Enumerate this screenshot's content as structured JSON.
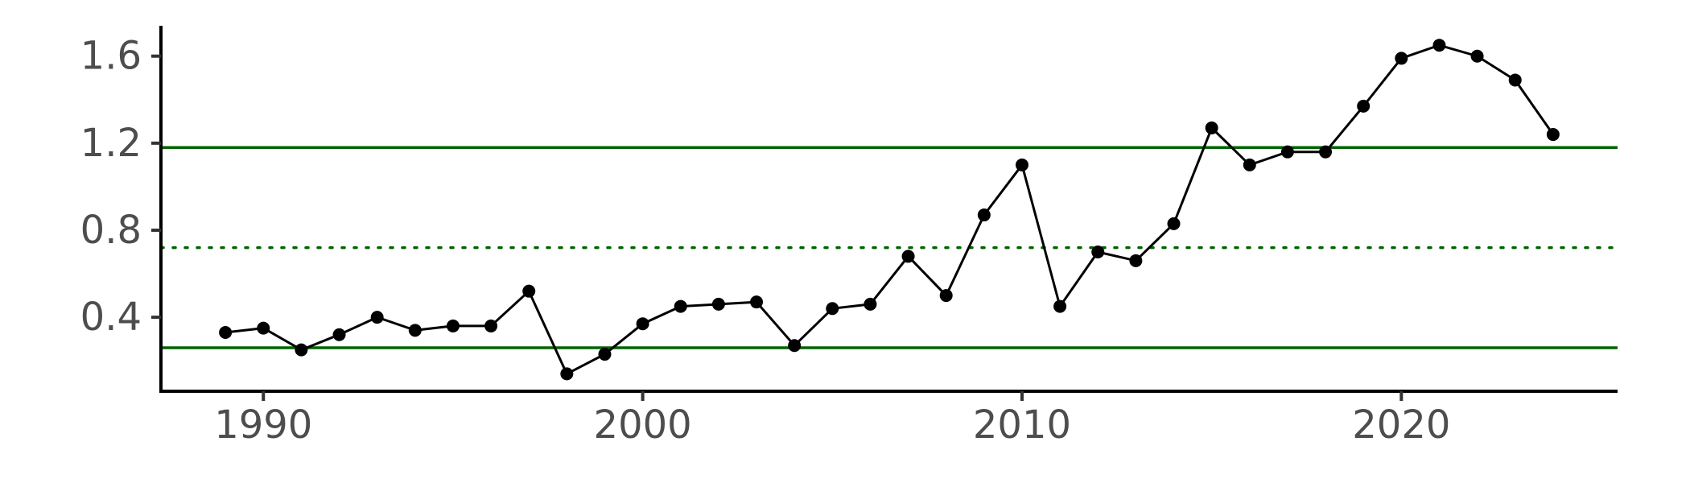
{
  "chart_data": {
    "type": "line",
    "title": "",
    "xlabel": "",
    "ylabel": "",
    "xlim": [
      1987.3,
      2025.7
    ],
    "ylim": [
      0.06,
      1.71
    ],
    "x_ticks": [
      1990,
      2000,
      2010,
      2020
    ],
    "x_tick_labels": [
      "1990",
      "2000",
      "2010",
      "2020"
    ],
    "y_ticks": [
      0.4,
      0.8,
      1.2,
      1.6
    ],
    "y_tick_labels": [
      "0.4",
      "0.8",
      "1.2",
      "1.6"
    ],
    "grid": false,
    "legend": "none",
    "series": [
      {
        "color": "#000000",
        "markers": true,
        "x": [
          1989,
          1990,
          1991,
          1992,
          1993,
          1994,
          1995,
          1996,
          1997,
          1998,
          1999,
          2000,
          2001,
          2002,
          2003,
          2004,
          2005,
          2006,
          2007,
          2008,
          2009,
          2010,
          2011,
          2012,
          2013,
          2014,
          2015,
          2016,
          2017,
          2018,
          2019,
          2020,
          2021,
          2022,
          2023,
          2024
        ],
        "y": [
          0.33,
          0.35,
          0.25,
          0.32,
          0.4,
          0.34,
          0.36,
          0.36,
          0.52,
          0.14,
          0.23,
          0.37,
          0.45,
          0.46,
          0.47,
          0.27,
          0.44,
          0.46,
          0.68,
          0.5,
          0.87,
          1.1,
          0.45,
          0.7,
          0.66,
          0.83,
          1.27,
          1.1,
          1.16,
          1.16,
          1.37,
          1.59,
          1.65,
          1.6,
          1.49,
          1.24
        ]
      }
    ],
    "reference_lines": [
      {
        "axis": "y",
        "value": 1.18,
        "style": "solid",
        "color": "#006400"
      },
      {
        "axis": "y",
        "value": 0.72,
        "style": "dotted",
        "color": "#006400"
      },
      {
        "axis": "y",
        "value": 0.26,
        "style": "solid",
        "color": "#006400"
      }
    ]
  }
}
